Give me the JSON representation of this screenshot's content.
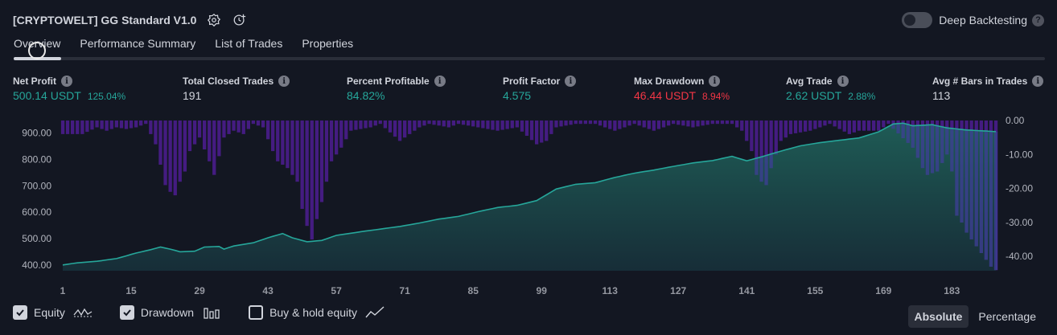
{
  "header": {
    "title": "[CRYPTOWELT] GG Standard V1.0",
    "deep_backtesting_label": "Deep Backtesting",
    "help_glyph": "?"
  },
  "tabs": [
    {
      "label": "Overview",
      "active": true
    },
    {
      "label": "Performance Summary"
    },
    {
      "label": "List of Trades"
    },
    {
      "label": "Properties"
    }
  ],
  "stats": [
    {
      "label": "Net Profit",
      "value": "500.14 USDT",
      "sub": "125.04%",
      "color": "green"
    },
    {
      "label": "Total Closed Trades",
      "value": "191",
      "sub": "",
      "color": "white"
    },
    {
      "label": "Percent Profitable",
      "value": "84.82%",
      "sub": "",
      "color": "green"
    },
    {
      "label": "Profit Factor",
      "value": "4.575",
      "sub": "",
      "color": "green"
    },
    {
      "label": "Max Drawdown",
      "value": "46.44 USDT",
      "sub": "8.94%",
      "color": "red"
    },
    {
      "label": "Avg Trade",
      "value": "2.62 USDT",
      "sub": "2.88%",
      "color": "green"
    },
    {
      "label": "Avg # Bars in Trades",
      "value": "113",
      "sub": "",
      "color": "white"
    }
  ],
  "info_glyph": "i",
  "chart_data": {
    "type": "area",
    "equity_axis": {
      "ticks": [
        "900.00",
        "800.00",
        "700.00",
        "600.00",
        "500.00",
        "400.00"
      ],
      "range": [
        378,
        948
      ]
    },
    "drawdown_axis": {
      "ticks": [
        "0.00",
        "-10.00",
        "-20.00",
        "-30.00",
        "-40.00"
      ],
      "range": [
        -44.2,
        0
      ]
    },
    "x_ticks": [
      "1",
      "15",
      "29",
      "43",
      "57",
      "71",
      "85",
      "99",
      "113",
      "127",
      "141",
      "155",
      "169",
      "183"
    ],
    "series": [
      {
        "kind": "equity",
        "points": [
          [
            1,
            400
          ],
          [
            4,
            408
          ],
          [
            8,
            414
          ],
          [
            12,
            424
          ],
          [
            16,
            445
          ],
          [
            19,
            458
          ],
          [
            21,
            468
          ],
          [
            23,
            460
          ],
          [
            25,
            450
          ],
          [
            28,
            452
          ],
          [
            30,
            468
          ],
          [
            33,
            470
          ],
          [
            34,
            460
          ],
          [
            36,
            472
          ],
          [
            40,
            484
          ],
          [
            43,
            503
          ],
          [
            46,
            519
          ],
          [
            48,
            503
          ],
          [
            51,
            488
          ],
          [
            54,
            493
          ],
          [
            57,
            512
          ],
          [
            62,
            526
          ],
          [
            66,
            536
          ],
          [
            70,
            546
          ],
          [
            74,
            559
          ],
          [
            78,
            574
          ],
          [
            82,
            584
          ],
          [
            86,
            602
          ],
          [
            90,
            618
          ],
          [
            94,
            626
          ],
          [
            98,
            644
          ],
          [
            102,
            688
          ],
          [
            106,
            706
          ],
          [
            110,
            712
          ],
          [
            114,
            732
          ],
          [
            118,
            748
          ],
          [
            122,
            760
          ],
          [
            126,
            774
          ],
          [
            130,
            787
          ],
          [
            134,
            796
          ],
          [
            138,
            812
          ],
          [
            141,
            795
          ],
          [
            144,
            810
          ],
          [
            148,
            832
          ],
          [
            152,
            852
          ],
          [
            156,
            864
          ],
          [
            160,
            873
          ],
          [
            164,
            882
          ],
          [
            168,
            905
          ],
          [
            171,
            935
          ],
          [
            173,
            938
          ],
          [
            175,
            928
          ],
          [
            179,
            932
          ],
          [
            182,
            920
          ],
          [
            186,
            912
          ],
          [
            190,
            908
          ],
          [
            192,
            906
          ]
        ]
      },
      {
        "kind": "drawdown",
        "points": [
          [
            5,
            -4
          ],
          [
            8,
            -2
          ],
          [
            10,
            -3
          ],
          [
            12,
            -2
          ],
          [
            14,
            -2.5
          ],
          [
            16,
            -2
          ],
          [
            18,
            -1
          ],
          [
            20,
            -7
          ],
          [
            22,
            -19
          ],
          [
            23,
            -21
          ],
          [
            24,
            -22
          ],
          [
            25,
            -18
          ],
          [
            26,
            -15
          ],
          [
            27,
            -9
          ],
          [
            29,
            -5
          ],
          [
            31,
            -12
          ],
          [
            32,
            -16
          ],
          [
            34,
            -5
          ],
          [
            36,
            -3
          ],
          [
            38,
            -4
          ],
          [
            40,
            -1
          ],
          [
            42,
            -2
          ],
          [
            44,
            -9
          ],
          [
            45,
            -12
          ],
          [
            47,
            -14
          ],
          [
            49,
            -18
          ],
          [
            50,
            -26
          ],
          [
            51,
            -31
          ],
          [
            52,
            -35
          ],
          [
            53,
            -29
          ],
          [
            54,
            -24
          ],
          [
            56,
            -12
          ],
          [
            58,
            -8
          ],
          [
            60,
            -3
          ],
          [
            64,
            -2
          ],
          [
            66,
            -1
          ],
          [
            70,
            -6
          ],
          [
            72,
            -4
          ],
          [
            74,
            -2
          ],
          [
            76,
            -1
          ],
          [
            80,
            -2
          ],
          [
            82,
            -1
          ],
          [
            90,
            -3
          ],
          [
            94,
            -2
          ],
          [
            98,
            -7
          ],
          [
            100,
            -6
          ],
          [
            102,
            -2
          ],
          [
            106,
            -1
          ],
          [
            110,
            -1
          ],
          [
            114,
            -3
          ],
          [
            118,
            -1
          ],
          [
            122,
            -3
          ],
          [
            126,
            -1
          ],
          [
            130,
            -2
          ],
          [
            134,
            -1
          ],
          [
            138,
            -1
          ],
          [
            140,
            -3
          ],
          [
            142,
            -9
          ],
          [
            143,
            -16
          ],
          [
            144,
            -18
          ],
          [
            145,
            -19
          ],
          [
            146,
            -14
          ],
          [
            148,
            -6
          ],
          [
            150,
            -4
          ],
          [
            154,
            -3
          ],
          [
            158,
            -1
          ],
          [
            162,
            -4
          ],
          [
            164,
            -3
          ],
          [
            168,
            -3
          ],
          [
            170,
            -1
          ],
          [
            175,
            -8
          ],
          [
            177,
            -14
          ],
          [
            178,
            -16
          ],
          [
            180,
            -15
          ],
          [
            182,
            -10
          ],
          [
            183,
            -15
          ],
          [
            184,
            -28
          ],
          [
            185,
            -30
          ],
          [
            186,
            -33
          ],
          [
            187,
            -35
          ],
          [
            188,
            -37
          ],
          [
            189,
            -39
          ],
          [
            190,
            -41
          ],
          [
            191,
            -43
          ],
          [
            192,
            -44
          ]
        ]
      }
    ]
  },
  "legend": [
    {
      "label": "Equity",
      "checked": true,
      "icon": "equity-line-icon"
    },
    {
      "label": "Drawdown",
      "checked": true,
      "icon": "bar-chart-icon"
    },
    {
      "label": "Buy & hold equity",
      "checked": false,
      "icon": "trend-line-icon"
    }
  ],
  "modes": [
    {
      "label": "Absolute",
      "active": true
    },
    {
      "label": "Percentage"
    }
  ]
}
